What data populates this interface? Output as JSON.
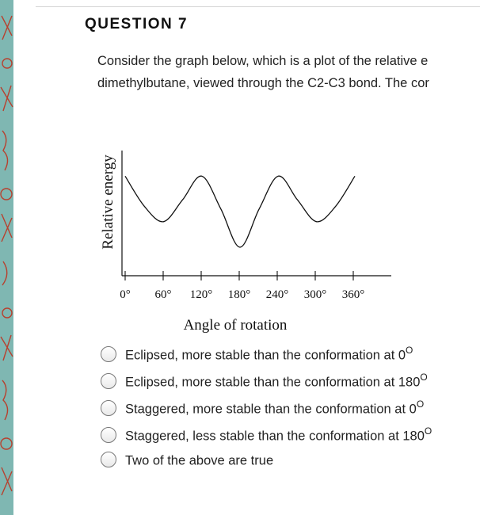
{
  "question": {
    "title": "QUESTION 7",
    "text_line1": "Consider the graph below, which is a plot of the relative e",
    "text_line2": "dimethylbutane, viewed through the C2-C3 bond. The cor"
  },
  "graph": {
    "ylabel": "Relative energy",
    "xlabel": "Angle of rotation",
    "ticks": [
      "0°",
      "60°",
      "120°",
      "180°",
      "240°",
      "300°",
      "360°"
    ]
  },
  "chart_data": {
    "type": "line",
    "title": "",
    "xlabel": "Angle of rotation",
    "ylabel": "Relative energy",
    "xlim": [
      0,
      360
    ],
    "ylim": [
      0,
      1
    ],
    "x": [
      0,
      30,
      60,
      90,
      120,
      150,
      180,
      210,
      240,
      270,
      300,
      330,
      360
    ],
    "y": [
      0.78,
      0.45,
      0.28,
      0.52,
      0.78,
      0.42,
      0.0,
      0.42,
      0.78,
      0.52,
      0.28,
      0.45,
      0.78
    ]
  },
  "options": [
    {
      "text": "Eclipsed, more stable than the conformation at 0",
      "sup": "O"
    },
    {
      "text": "Eclipsed, more stable than the conformation at 180",
      "sup": "O"
    },
    {
      "text": "Staggered, more stable than the conformation at 0",
      "sup": "O"
    },
    {
      "text": "Staggered, less stable than the conformation at 180",
      "sup": "O"
    },
    {
      "text": "Two of the above are true",
      "sup": ""
    }
  ],
  "colors": {
    "side_strip": "#7fb7b2",
    "strip_pattern": "#b8402e"
  }
}
